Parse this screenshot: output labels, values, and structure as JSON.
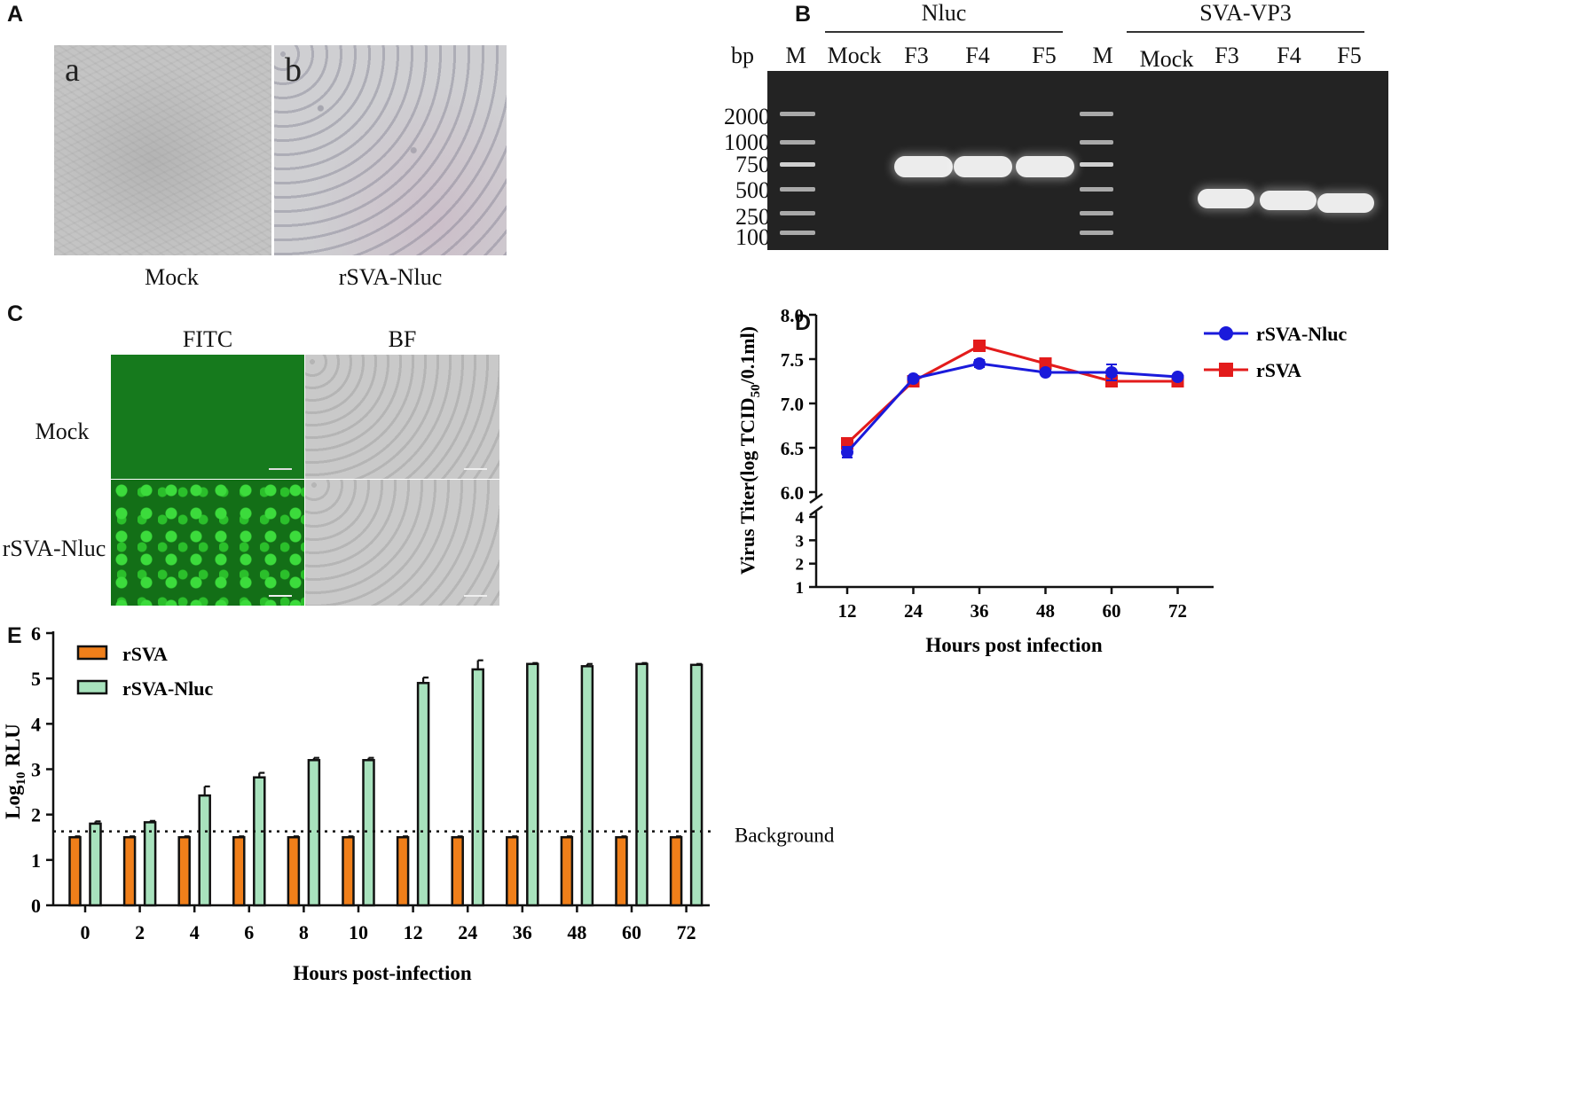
{
  "panel_letters": {
    "a": "A",
    "b": "B",
    "c": "C",
    "d": "D",
    "e": "E"
  },
  "panelA": {
    "sub_a": "a",
    "sub_b": "b",
    "label_a": "Mock",
    "label_b": "rSVA-Nluc"
  },
  "panelB": {
    "group1": "Nluc",
    "group2": "SVA-VP3",
    "bp": "bp",
    "lanes": [
      "M",
      "Mock",
      "F3",
      "F4",
      "F5",
      "M",
      "Mock",
      "F3",
      "F4",
      "F5"
    ],
    "sizes": [
      "2000",
      "1000",
      "750",
      "500",
      "250",
      "100"
    ]
  },
  "panelC": {
    "col1": "FITC",
    "col2": "BF",
    "row1": "Mock",
    "row2": "rSVA-Nluc"
  },
  "chart_data": [
    {
      "type": "line",
      "panel": "D",
      "xlabel": "Hours post infection",
      "ylabel_prefix": "Virus Titer(log TCID",
      "ylabel_sub": "50",
      "ylabel_suffix": "/0.1ml)",
      "x": [
        12,
        24,
        36,
        48,
        60,
        72
      ],
      "upper_ticks": [
        "6.0",
        "6.5",
        "7.0",
        "7.5",
        "8.0"
      ],
      "lower_ticks": [
        "1",
        "2",
        "3",
        "4"
      ],
      "ylim_upper": [
        6.0,
        8.0
      ],
      "ylim_lower": [
        1,
        4
      ],
      "legend_position": "top-right",
      "series": [
        {
          "name": "rSVA-Nluc",
          "color": "#1a1adb",
          "marker": "circle",
          "values": [
            6.45,
            7.28,
            7.45,
            7.35,
            7.35,
            7.3
          ],
          "err": [
            0.06,
            0.02,
            0.04,
            0.02,
            0.09,
            0.02
          ]
        },
        {
          "name": "rSVA",
          "color": "#e31b1b",
          "marker": "square",
          "values": [
            6.55,
            7.25,
            7.65,
            7.45,
            7.25,
            7.25
          ],
          "err": [
            0.03,
            0.02,
            0.05,
            0.02,
            0.02,
            0.02
          ]
        }
      ]
    },
    {
      "type": "bar",
      "panel": "E",
      "xlabel": "Hours post-infection",
      "ylabel_prefix": "Log",
      "ylabel_sub": "10",
      "ylabel_suffix": " RLU",
      "categories": [
        "0",
        "2",
        "4",
        "6",
        "8",
        "10",
        "12",
        "24",
        "36",
        "48",
        "60",
        "72"
      ],
      "yticks": [
        "0",
        "1",
        "2",
        "3",
        "4",
        "5",
        "6"
      ],
      "ylim": [
        0,
        6
      ],
      "background_value": 1.63,
      "background_label": "Background",
      "legend_position": "top-left",
      "series": [
        {
          "name": "rSVA",
          "color": "#f07f1a",
          "values": [
            1.5,
            1.5,
            1.5,
            1.5,
            1.5,
            1.5,
            1.5,
            1.5,
            1.5,
            1.5,
            1.5,
            1.5
          ],
          "err": [
            0.02,
            0.02,
            0.02,
            0.02,
            0.02,
            0.02,
            0.02,
            0.02,
            0.02,
            0.02,
            0.02,
            0.02
          ]
        },
        {
          "name": "rSVA-Nluc",
          "color": "#a8e2bd",
          "values": [
            1.8,
            1.83,
            2.42,
            2.82,
            3.2,
            3.2,
            4.9,
            5.2,
            5.32,
            5.27,
            5.32,
            5.3
          ],
          "err": [
            0.05,
            0.03,
            0.2,
            0.1,
            0.05,
            0.05,
            0.12,
            0.2,
            0.02,
            0.05,
            0.02,
            0.02
          ]
        }
      ]
    }
  ]
}
